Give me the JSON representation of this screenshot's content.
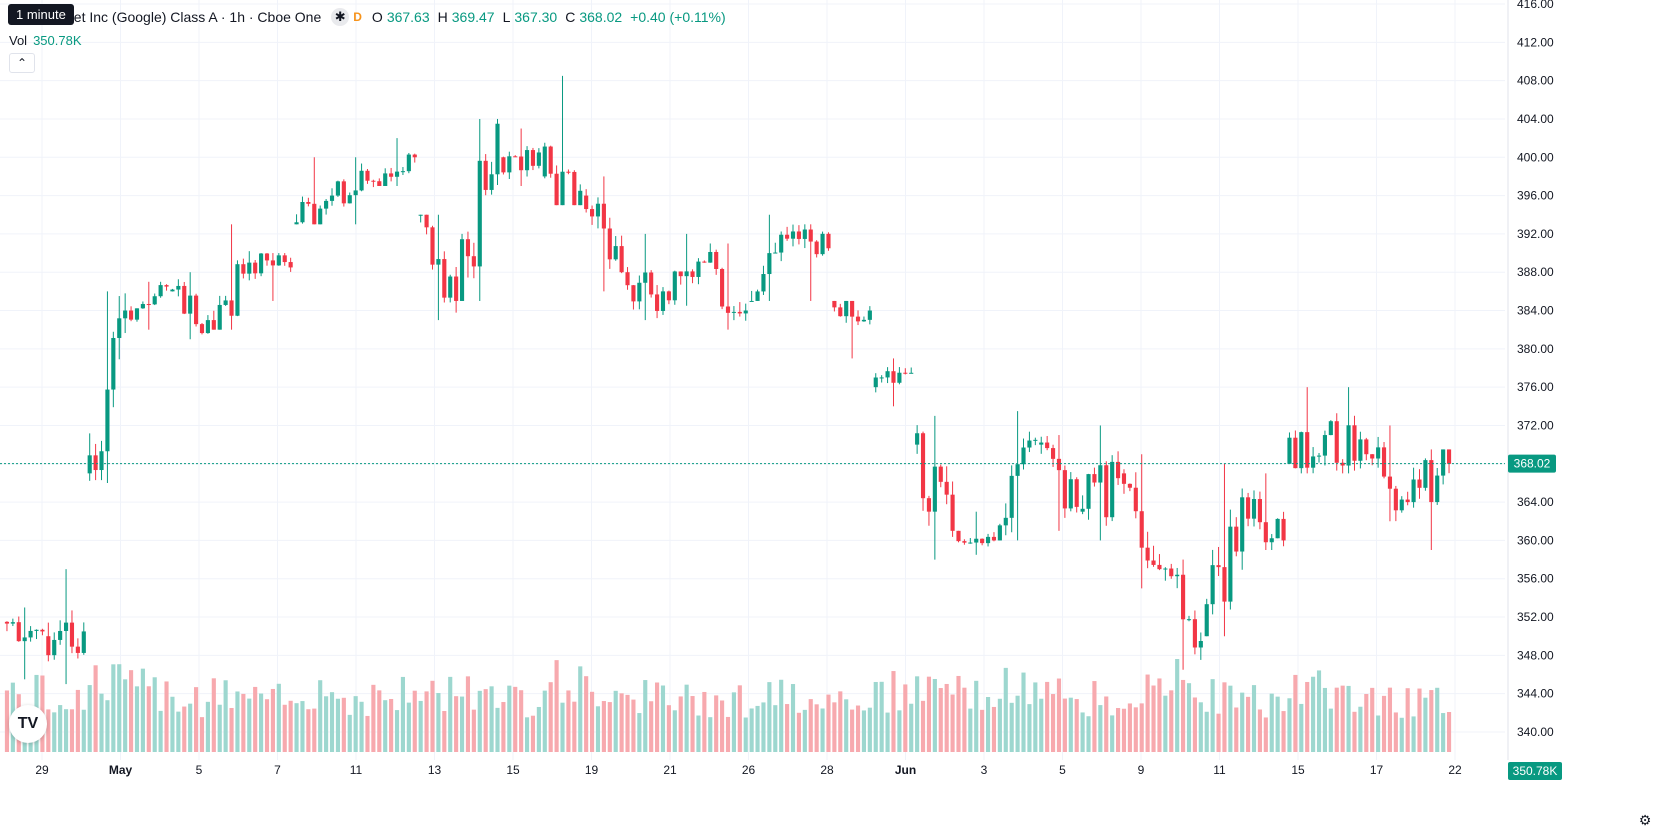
{
  "legend": {
    "symbol_title": "bet Inc (Google) Class A · 1h · Cboe One",
    "icon": "asterisk-icon",
    "interval_letter": "D",
    "o_label": "O",
    "o_value": "367.63",
    "h_label": "H",
    "h_value": "369.47",
    "l_label": "L",
    "l_value": "367.30",
    "c_label": "C",
    "c_value": "368.02",
    "change": "+0.40 (+0.11%)"
  },
  "tooltip": "1 minute",
  "volume": {
    "label": "Vol",
    "value": "350.78K"
  },
  "last_price_label": "368.02",
  "last_volume_label": "350.78K",
  "colors": {
    "up": "#089981",
    "down": "#f23645",
    "up_vol": "#9dd7cf",
    "down_vol": "#f7a9ae",
    "grid": "#f0f3fa",
    "text": "#131722"
  },
  "chart_data": {
    "type": "candlestick",
    "price_axis": {
      "ticks": [
        340,
        344,
        348,
        352,
        356,
        360,
        364,
        368,
        372,
        376,
        380,
        384,
        388,
        392,
        396,
        400,
        404,
        408,
        412,
        416
      ],
      "decimals": 2
    },
    "time_axis": {
      "labels": [
        "29",
        "May",
        "5",
        "7",
        "11",
        "13",
        "15",
        "19",
        "21",
        "26",
        "28",
        "Jun",
        "3",
        "5",
        "9",
        "11",
        "15",
        "17",
        "22"
      ]
    },
    "last_price": 368.02,
    "bars_per_day": 7,
    "daily_ohlc": [
      [
        351.5,
        353.0,
        345.5,
        350.5
      ],
      [
        350.0,
        357.0,
        345.0,
        350.5
      ],
      [
        367.0,
        386.0,
        366.0,
        384.0
      ],
      [
        384.0,
        387.0,
        382.0,
        386.5
      ],
      [
        386.0,
        388.0,
        381.0,
        383.0
      ],
      [
        383.0,
        393.0,
        382.0,
        389.0
      ],
      [
        389.0,
        390.0,
        385.0,
        388.5
      ],
      [
        393.0,
        400.0,
        393.0,
        396.0
      ],
      [
        396.0,
        400.0,
        393.0,
        397.5
      ],
      [
        397.5,
        402.0,
        397.0,
        400.0
      ],
      [
        394.0,
        394.0,
        383.0,
        385.0
      ],
      [
        385.0,
        404.0,
        385.0,
        403.5
      ],
      [
        400.0,
        403.0,
        397.0,
        400.5
      ],
      [
        398.0,
        408.5,
        395.0,
        396.5
      ],
      [
        396.0,
        398.0,
        386.0,
        388.0
      ],
      [
        388.0,
        392.0,
        383.0,
        386.0
      ],
      [
        386.0,
        392.0,
        384.5,
        389.0
      ],
      [
        389.0,
        391.0,
        382.0,
        384.0
      ],
      [
        385.0,
        394.0,
        385.0,
        391.5
      ],
      [
        391.5,
        393.0,
        385.0,
        390.5
      ],
      [
        385.0,
        385.0,
        379.0,
        384.0
      ],
      [
        376.0,
        379.0,
        374.0,
        377.5
      ],
      [
        370.0,
        373.0,
        358.0,
        361.0
      ],
      [
        361.0,
        363.0,
        358.5,
        360.0
      ],
      [
        360.0,
        373.5,
        360.0,
        370.5
      ],
      [
        370.0,
        371.0,
        361.0,
        363.5
      ],
      [
        363.0,
        372.0,
        360.0,
        366.5
      ],
      [
        367.0,
        369.0,
        355.0,
        357.0
      ],
      [
        357.0,
        358.0,
        346.5,
        349.5
      ],
      [
        350.0,
        368.0,
        350.0,
        364.5
      ],
      [
        364.5,
        367.0,
        359.0,
        360.0
      ],
      [
        368.0,
        376.0,
        367.0,
        371.0
      ],
      [
        371.0,
        376.0,
        367.0,
        369.0
      ],
      [
        369.0,
        372.0,
        362.0,
        364.0
      ],
      [
        364.0,
        369.5,
        359.0,
        368.0
      ]
    ],
    "daily_volume_k": [
      430,
      390,
      520,
      460,
      400,
      420,
      380,
      480,
      400,
      420,
      430,
      460,
      390,
      520,
      470,
      410,
      380,
      390,
      400,
      430,
      420,
      450,
      500,
      430,
      470,
      420,
      400,
      430,
      520,
      410,
      390,
      450,
      420,
      390,
      400
    ]
  }
}
